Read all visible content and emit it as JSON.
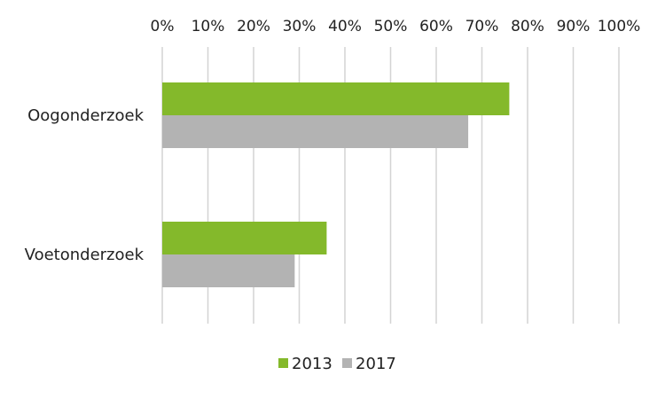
{
  "chart_data": {
    "type": "bar",
    "orientation": "horizontal",
    "categories": [
      "Oogonderzoek",
      "Voetonderzoek"
    ],
    "series": [
      {
        "name": "2013",
        "values": [
          76,
          36
        ],
        "color": "#84b92b"
      },
      {
        "name": "2017",
        "values": [
          67,
          29
        ],
        "color": "#b3b3b3"
      }
    ],
    "x_ticks": [
      "0%",
      "10%",
      "20%",
      "30%",
      "40%",
      "50%",
      "60%",
      "70%",
      "80%",
      "90%",
      "100%"
    ],
    "xlim": [
      0,
      100
    ],
    "x_axis_position": "top",
    "grid": true,
    "legend_position": "bottom"
  }
}
